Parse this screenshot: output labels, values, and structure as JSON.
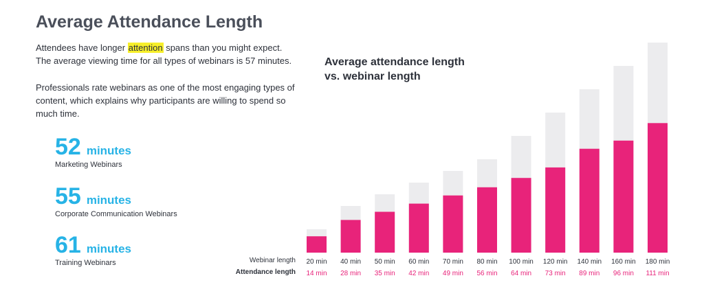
{
  "header": {
    "title": "Average Attendance Length"
  },
  "intro": {
    "p1_before": "Attendees have longer ",
    "p1_highlight": "attention",
    "p1_after": " spans than you might expect. The average viewing time for all types of webinars is 57 minutes.",
    "p2": "Professionals rate webinars as one of the most engaging types of content, which explains why participants are willing to spend so much time."
  },
  "stats": [
    {
      "value": "52",
      "unit": "minutes",
      "label": "Marketing Webinars"
    },
    {
      "value": "55",
      "unit": "minutes",
      "label": "Corporate Communication Webinars"
    },
    {
      "value": "61",
      "unit": "minutes",
      "label": "Training Webinars"
    }
  ],
  "chart_data": {
    "type": "bar",
    "title_line1": "Average attendance length",
    "title_line2": "vs. webinar length",
    "row_label_webinar": "Webinar length",
    "row_label_attendance": "Attendance length",
    "categories": [
      "20 min",
      "40 min",
      "50 min",
      "60 min",
      "70 min",
      "80 min",
      "100 min",
      "120 min",
      "140 min",
      "160 min",
      "180 min"
    ],
    "attendance_labels": [
      "14 min",
      "28 min",
      "35 min",
      "42 min",
      "49 min",
      "56 min",
      "64 min",
      "73 min",
      "89 min",
      "96 min",
      "111 min"
    ],
    "series": [
      {
        "name": "Webinar length",
        "values": [
          20,
          40,
          50,
          60,
          70,
          80,
          100,
          120,
          140,
          160,
          180
        ],
        "color": "#ececee"
      },
      {
        "name": "Attendance length",
        "values": [
          14,
          28,
          35,
          42,
          49,
          56,
          64,
          73,
          89,
          96,
          111
        ],
        "color": "#e8237a"
      }
    ],
    "ylim": [
      0,
      180
    ],
    "label_color_attendance": "#e8237a"
  }
}
